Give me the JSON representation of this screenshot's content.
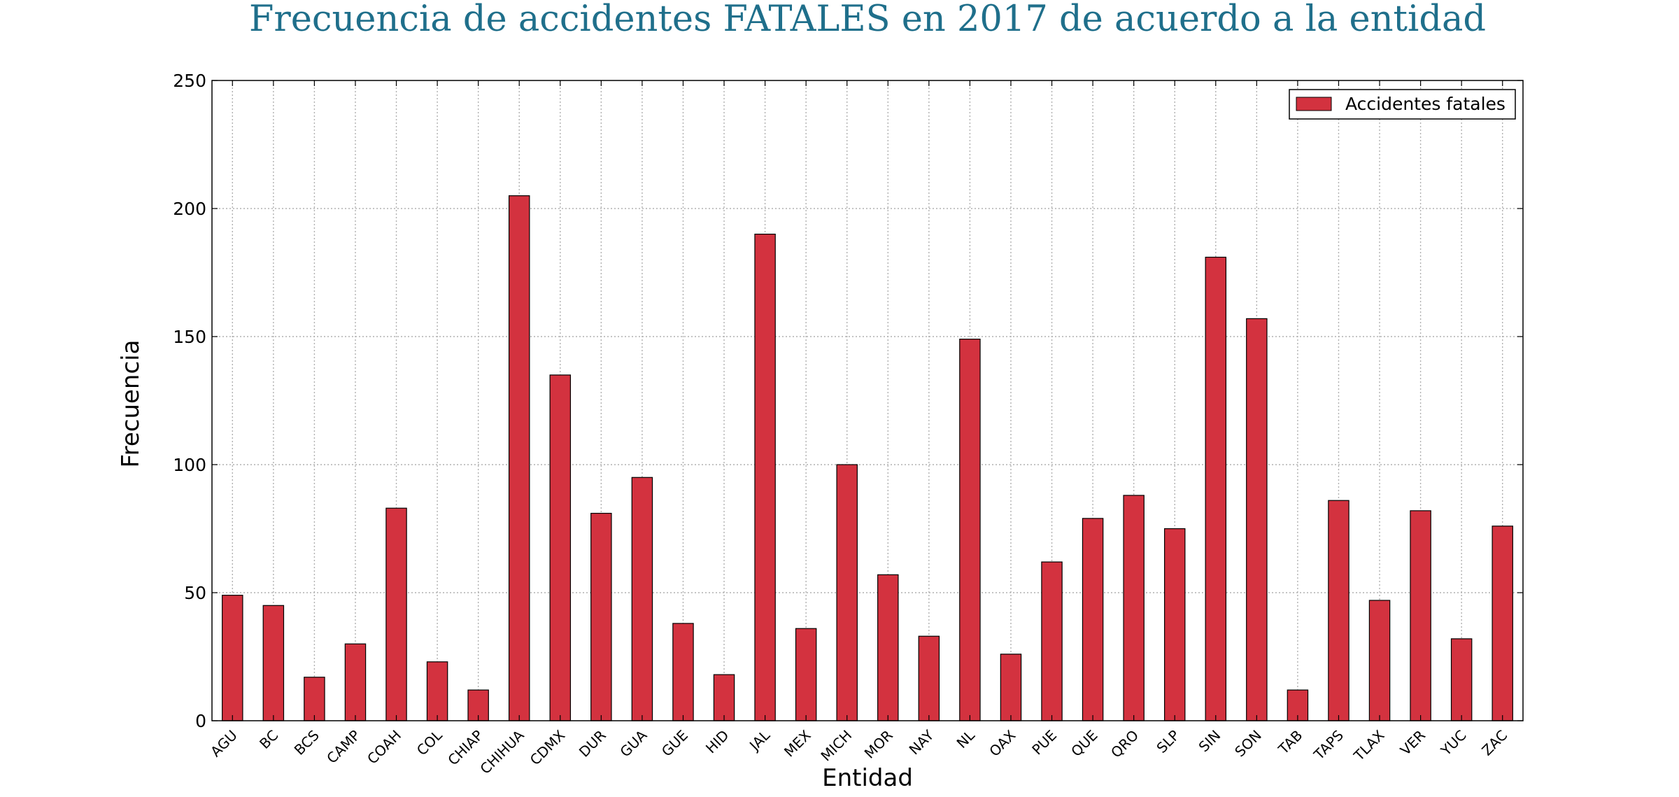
{
  "chart_data": {
    "type": "bar",
    "title": "Frecuencia de accidentes FATALES en 2017 de acuerdo a la entidad",
    "xlabel": "Entidad",
    "ylabel": "Frecuencia",
    "categories": [
      "AGU",
      "BC",
      "BCS",
      "CAMP",
      "COAH",
      "COL",
      "CHIAP",
      "CHIHUA",
      "CDMX",
      "DUR",
      "GUA",
      "GUE",
      "HID",
      "JAL",
      "MEX",
      "MICH",
      "MOR",
      "NAY",
      "NL",
      "OAX",
      "PUE",
      "QUE",
      "QRO",
      "SLP",
      "SIN",
      "SON",
      "TAB",
      "TAPS",
      "TLAX",
      "VER",
      "YUC",
      "ZAC"
    ],
    "series": [
      {
        "name": "Accidentes fatales",
        "values": [
          49,
          45,
          17,
          30,
          83,
          23,
          12,
          205,
          135,
          81,
          95,
          38,
          18,
          190,
          36,
          100,
          57,
          33,
          149,
          26,
          62,
          79,
          88,
          75,
          181,
          157,
          12,
          86,
          47,
          82,
          32,
          76
        ]
      }
    ],
    "ylim": [
      0,
      250
    ],
    "yticks": [
      0,
      50,
      100,
      150,
      200,
      250
    ],
    "grid": true,
    "legend_position": "top-right",
    "colors": {
      "bar": "#d3323f",
      "title": "#1f6f8b",
      "grid": "#b0b0b0"
    }
  }
}
